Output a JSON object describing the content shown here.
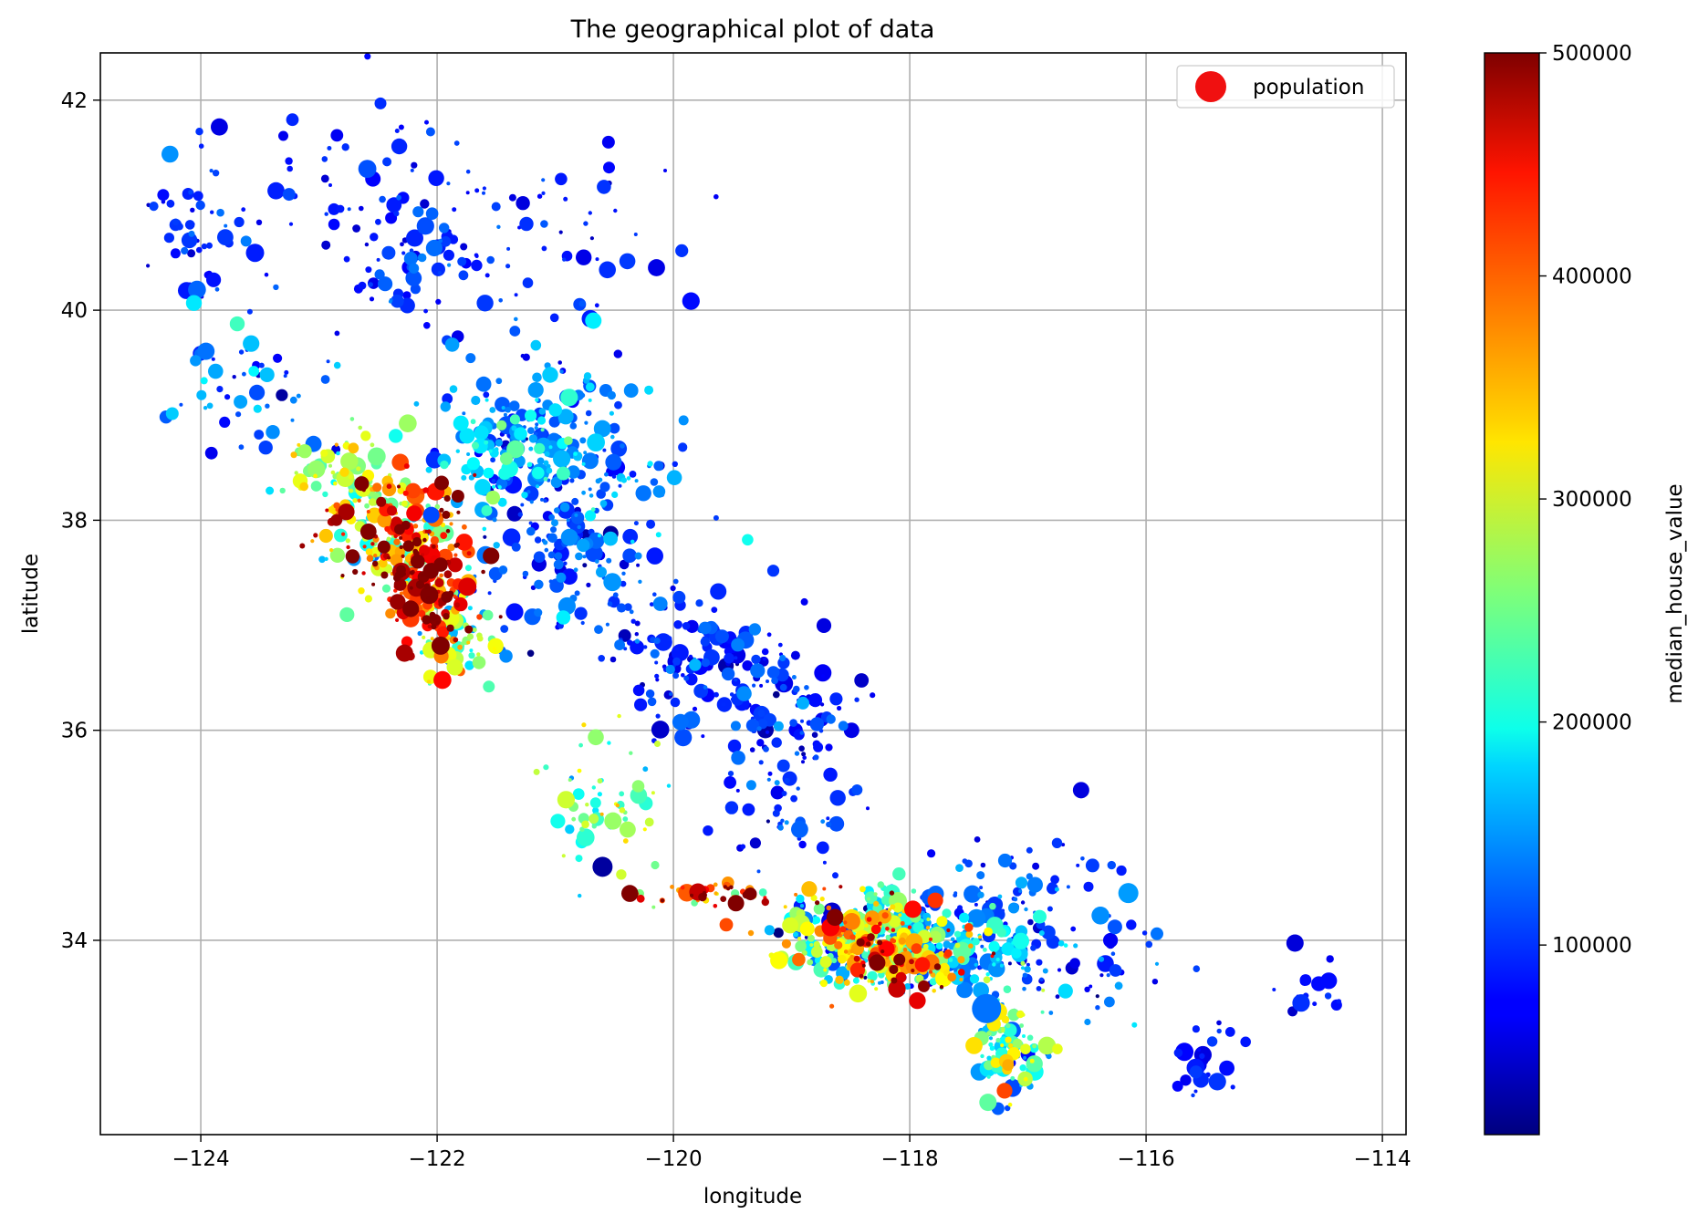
{
  "chart_data": {
    "type": "scatter",
    "title": "The geographical plot of data",
    "xlabel": "longitude",
    "ylabel": "latitude",
    "xlim": [
      -124.85,
      -113.8
    ],
    "ylim": [
      32.15,
      42.45
    ],
    "xticks": [
      -124,
      -122,
      -120,
      -118,
      -116,
      -114
    ],
    "xtick_labels": [
      "−124",
      "−122",
      "−120",
      "−118",
      "−116",
      "−114"
    ],
    "yticks": [
      34,
      36,
      38,
      40,
      42
    ],
    "ytick_labels": [
      "34",
      "36",
      "38",
      "40",
      "42"
    ],
    "grid": true,
    "legend": {
      "label": "population",
      "location": "upper-right",
      "color": "#f01010"
    },
    "colorbar": {
      "label": "median_house_value",
      "colormap": "jet",
      "range": [
        15000,
        500001
      ],
      "ticks": [
        100000,
        200000,
        300000,
        400000,
        500000
      ],
      "tick_labels": [
        "100000",
        "200000",
        "300000",
        "400000",
        "500000"
      ]
    },
    "clusters": [
      {
        "x": -122.35,
        "y": 37.9,
        "sx": 0.28,
        "sy": 0.35,
        "n": 220,
        "v": 370000,
        "vs": 110000
      },
      {
        "x": -122.05,
        "y": 37.35,
        "sx": 0.2,
        "sy": 0.3,
        "n": 170,
        "v": 440000,
        "vs": 80000
      },
      {
        "x": -121.8,
        "y": 36.9,
        "sx": 0.2,
        "sy": 0.25,
        "n": 70,
        "v": 250000,
        "vs": 70000
      },
      {
        "x": -122.8,
        "y": 38.4,
        "sx": 0.22,
        "sy": 0.2,
        "n": 70,
        "v": 270000,
        "vs": 50000
      },
      {
        "x": -121.4,
        "y": 38.6,
        "sx": 0.35,
        "sy": 0.3,
        "n": 150,
        "v": 150000,
        "vs": 50000
      },
      {
        "x": -121.0,
        "y": 39.0,
        "sx": 0.35,
        "sy": 0.35,
        "n": 80,
        "v": 140000,
        "vs": 40000
      },
      {
        "x": -120.7,
        "y": 38.3,
        "sx": 0.4,
        "sy": 0.4,
        "n": 90,
        "v": 130000,
        "vs": 40000
      },
      {
        "x": -120.9,
        "y": 37.6,
        "sx": 0.4,
        "sy": 0.3,
        "n": 100,
        "v": 110000,
        "vs": 30000
      },
      {
        "x": -119.8,
        "y": 36.7,
        "sx": 0.35,
        "sy": 0.35,
        "n": 130,
        "v": 90000,
        "vs": 25000
      },
      {
        "x": -119.1,
        "y": 36.2,
        "sx": 0.3,
        "sy": 0.3,
        "n": 80,
        "v": 90000,
        "vs": 25000
      },
      {
        "x": -118.95,
        "y": 35.35,
        "sx": 0.25,
        "sy": 0.3,
        "n": 50,
        "v": 95000,
        "vs": 25000
      },
      {
        "x": -122.1,
        "y": 40.5,
        "sx": 0.3,
        "sy": 0.4,
        "n": 70,
        "v": 95000,
        "vs": 25000
      },
      {
        "x": -123.6,
        "y": 39.3,
        "sx": 0.35,
        "sy": 0.3,
        "n": 50,
        "v": 120000,
        "vs": 40000
      },
      {
        "x": -124.1,
        "y": 40.8,
        "sx": 0.15,
        "sy": 0.35,
        "n": 40,
        "v": 90000,
        "vs": 20000
      },
      {
        "x": -123.0,
        "y": 41.0,
        "sx": 0.6,
        "sy": 0.6,
        "n": 60,
        "v": 80000,
        "vs": 20000
      },
      {
        "x": -121.0,
        "y": 40.6,
        "sx": 0.6,
        "sy": 0.5,
        "n": 50,
        "v": 85000,
        "vs": 20000
      },
      {
        "x": -120.6,
        "y": 35.3,
        "sx": 0.25,
        "sy": 0.4,
        "n": 60,
        "v": 250000,
        "vs": 50000
      },
      {
        "x": -119.6,
        "y": 34.43,
        "sx": 0.4,
        "sy": 0.06,
        "n": 50,
        "v": 400000,
        "vs": 100000
      },
      {
        "x": -118.35,
        "y": 34.05,
        "sx": 0.35,
        "sy": 0.2,
        "n": 380,
        "v": 260000,
        "vs": 110000
      },
      {
        "x": -118.05,
        "y": 33.8,
        "sx": 0.3,
        "sy": 0.15,
        "n": 160,
        "v": 300000,
        "vs": 110000
      },
      {
        "x": -117.55,
        "y": 33.95,
        "sx": 0.45,
        "sy": 0.2,
        "n": 160,
        "v": 130000,
        "vs": 50000
      },
      {
        "x": -117.15,
        "y": 32.95,
        "sx": 0.15,
        "sy": 0.25,
        "n": 110,
        "v": 220000,
        "vs": 80000
      },
      {
        "x": -117.2,
        "y": 34.5,
        "sx": 0.4,
        "sy": 0.25,
        "n": 60,
        "v": 100000,
        "vs": 30000
      },
      {
        "x": -116.5,
        "y": 33.8,
        "sx": 0.4,
        "sy": 0.3,
        "n": 40,
        "v": 110000,
        "vs": 40000
      },
      {
        "x": -115.5,
        "y": 32.9,
        "sx": 0.12,
        "sy": 0.2,
        "n": 25,
        "v": 80000,
        "vs": 15000
      },
      {
        "x": -114.6,
        "y": 33.6,
        "sx": 0.12,
        "sy": 0.2,
        "n": 15,
        "v": 75000,
        "vs": 15000
      }
    ],
    "highlights": [
      {
        "x": -117.35,
        "y": 33.35,
        "r": 16,
        "v": 130000
      },
      {
        "x": -116.15,
        "y": 34.45,
        "r": 11,
        "v": 150000
      },
      {
        "x": -120.6,
        "y": 34.7,
        "r": 11,
        "v": 30000
      },
      {
        "x": -116.55,
        "y": 35.43,
        "r": 9,
        "v": 60000
      },
      {
        "x": -120.55,
        "y": 41.6,
        "r": 7,
        "v": 70000
      },
      {
        "x": -121.85,
        "y": 36.6,
        "r": 9,
        "v": 300000
      },
      {
        "x": -122.05,
        "y": 38.05,
        "r": 9,
        "v": 110000
      }
    ]
  }
}
